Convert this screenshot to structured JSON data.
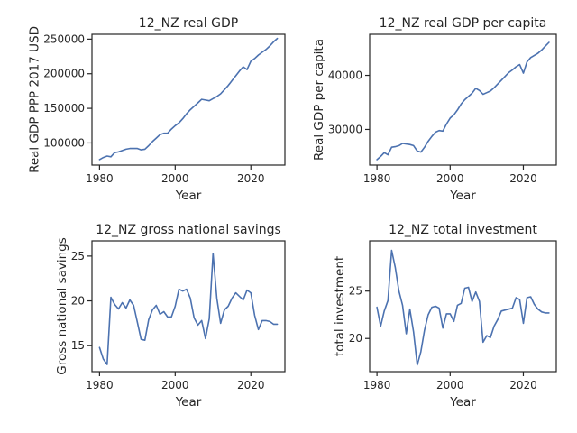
{
  "chart_data": [
    {
      "type": "line",
      "title": "12_NZ real GDP",
      "xlabel": "Year",
      "ylabel": "Real GDP PPP 2017 USD",
      "color": "#4c72b0",
      "xlim": [
        1978,
        2029
      ],
      "ylim": [
        68000,
        257000
      ],
      "xticks": [
        1980,
        2000,
        2020
      ],
      "yticks": [
        100000,
        150000,
        200000,
        250000
      ],
      "ytick_labels": [
        "100000",
        "150000",
        "200000",
        "250000"
      ],
      "x": [
        1980,
        1981,
        1982,
        1983,
        1984,
        1985,
        1986,
        1987,
        1988,
        1989,
        1990,
        1991,
        1992,
        1993,
        1994,
        1995,
        1996,
        1997,
        1998,
        1999,
        2000,
        2001,
        2002,
        2003,
        2004,
        2005,
        2006,
        2007,
        2008,
        2009,
        2010,
        2011,
        2012,
        2013,
        2014,
        2015,
        2016,
        2017,
        2018,
        2019,
        2020,
        2021,
        2022,
        2023,
        2024,
        2025,
        2026,
        2027
      ],
      "y": [
        76000,
        79000,
        81000,
        80000,
        86000,
        87000,
        89000,
        91000,
        92000,
        92000,
        92000,
        90000,
        91000,
        96000,
        102000,
        107000,
        112000,
        114000,
        114000,
        120000,
        125000,
        129000,
        135000,
        142000,
        148000,
        153000,
        158000,
        163000,
        162000,
        161000,
        164000,
        167000,
        171000,
        177000,
        183000,
        190000,
        197000,
        204000,
        210000,
        206000,
        218000,
        222000,
        227000,
        231000,
        235000,
        240000,
        246000,
        251000
      ]
    },
    {
      "type": "line",
      "title": "12_NZ real GDP per capita",
      "xlabel": "Year",
      "ylabel": "Real GDP per capita",
      "color": "#4c72b0",
      "xlim": [
        1978,
        2029
      ],
      "ylim": [
        23400,
        47600
      ],
      "xticks": [
        1980,
        2000,
        2020
      ],
      "yticks": [
        30000,
        40000
      ],
      "ytick_labels": [
        "30000",
        "40000"
      ],
      "x": [
        1980,
        1981,
        1982,
        1983,
        1984,
        1985,
        1986,
        1987,
        1988,
        1989,
        1990,
        1991,
        1992,
        1993,
        1994,
        1995,
        1996,
        1997,
        1998,
        1999,
        2000,
        2001,
        2002,
        2003,
        2004,
        2005,
        2006,
        2007,
        2008,
        2009,
        2010,
        2011,
        2012,
        2013,
        2014,
        2015,
        2016,
        2017,
        2018,
        2019,
        2020,
        2021,
        2022,
        2023,
        2024,
        2025,
        2026,
        2027
      ],
      "y": [
        24400,
        25000,
        25700,
        25300,
        26700,
        26800,
        27000,
        27400,
        27300,
        27200,
        27000,
        26000,
        25800,
        26700,
        27800,
        28700,
        29500,
        29800,
        29700,
        31000,
        32100,
        32700,
        33600,
        34700,
        35500,
        36100,
        36700,
        37600,
        37200,
        36500,
        36800,
        37100,
        37700,
        38400,
        39100,
        39800,
        40500,
        41000,
        41600,
        42000,
        40400,
        42500,
        43300,
        43700,
        44100,
        44700,
        45400,
        46100
      ]
    },
    {
      "type": "line",
      "title": "12_NZ gross national savings",
      "xlabel": "Year",
      "ylabel": "Gross national savings",
      "color": "#4c72b0",
      "xlim": [
        1978,
        2029
      ],
      "ylim": [
        12.1,
        26.7
      ],
      "xticks": [
        1980,
        2000,
        2020
      ],
      "yticks": [
        15,
        20,
        25
      ],
      "ytick_labels": [
        "15",
        "20",
        "25"
      ],
      "x": [
        1980,
        1981,
        1982,
        1983,
        1984,
        1985,
        1986,
        1987,
        1988,
        1989,
        1990,
        1991,
        1992,
        1993,
        1994,
        1995,
        1996,
        1997,
        1998,
        1999,
        2000,
        2001,
        2002,
        2003,
        2004,
        2005,
        2006,
        2007,
        2008,
        2009,
        2010,
        2011,
        2012,
        2013,
        2014,
        2015,
        2016,
        2017,
        2018,
        2019,
        2020,
        2021,
        2022,
        2023,
        2024,
        2025,
        2026,
        2027
      ],
      "y": [
        14.8,
        13.5,
        12.9,
        20.4,
        19.6,
        19.1,
        19.8,
        19.2,
        20.1,
        19.5,
        17.6,
        15.7,
        15.6,
        17.9,
        19.0,
        19.5,
        18.5,
        18.8,
        18.2,
        18.2,
        19.4,
        21.3,
        21.1,
        21.3,
        20.3,
        18.1,
        17.3,
        17.8,
        15.8,
        18.0,
        25.3,
        20.3,
        17.5,
        19.0,
        19.4,
        20.3,
        20.9,
        20.5,
        20.1,
        21.2,
        20.9,
        18.4,
        16.8,
        17.8,
        17.8,
        17.7,
        17.4,
        17.4
      ]
    },
    {
      "type": "line",
      "title": "12_NZ total investment",
      "xlabel": "Year",
      "ylabel": "total investment",
      "color": "#4c72b0",
      "xlim": [
        1978,
        2029
      ],
      "ylim": [
        16.5,
        30.3
      ],
      "xticks": [
        1980,
        2000,
        2020
      ],
      "yticks": [
        20,
        25
      ],
      "ytick_labels": [
        "20",
        "25"
      ],
      "x": [
        1980,
        1981,
        1982,
        1983,
        1984,
        1985,
        1986,
        1987,
        1988,
        1989,
        1990,
        1991,
        1992,
        1993,
        1994,
        1995,
        1996,
        1997,
        1998,
        1999,
        2000,
        2001,
        2002,
        2003,
        2004,
        2005,
        2006,
        2007,
        2008,
        2009,
        2010,
        2011,
        2012,
        2013,
        2014,
        2015,
        2016,
        2017,
        2018,
        2019,
        2020,
        2021,
        2022,
        2023,
        2024,
        2025,
        2026,
        2027
      ],
      "y": [
        23.3,
        21.3,
        22.9,
        24.0,
        29.3,
        27.5,
        25.0,
        23.5,
        20.5,
        23.1,
        20.7,
        17.2,
        18.6,
        20.9,
        22.5,
        23.3,
        23.4,
        23.2,
        21.1,
        22.6,
        22.6,
        21.8,
        23.5,
        23.7,
        25.3,
        25.4,
        23.9,
        24.9,
        23.9,
        19.6,
        20.3,
        20.1,
        21.3,
        22.0,
        22.9,
        23.0,
        23.1,
        23.2,
        24.3,
        24.1,
        21.6,
        24.3,
        24.4,
        23.6,
        23.1,
        22.8,
        22.7,
        22.7
      ]
    }
  ]
}
